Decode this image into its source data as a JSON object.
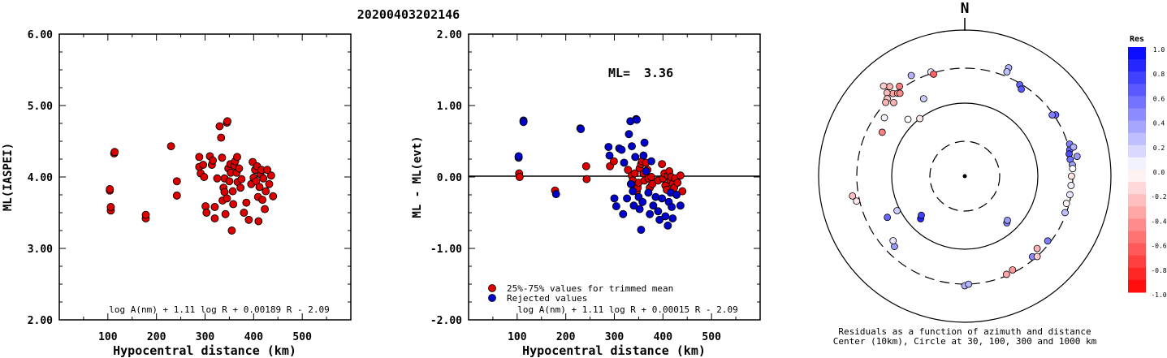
{
  "title": "20200403202146",
  "chart_data": [
    {
      "type": "scatter",
      "ylabel": "ML(IASPEI)",
      "xlabel": "Hypocentral distance (km)",
      "xlim": [
        0,
        600
      ],
      "ylim": [
        2.0,
        6.0
      ],
      "x_ticks": [
        "100",
        "200",
        "300",
        "400",
        "500"
      ],
      "y_ticks": [
        "2.00",
        "3.00",
        "4.00",
        "5.00",
        "6.00"
      ],
      "formula": "log A(nm) + 1.11 log R + 0.00189 R - 2.09",
      "color": "#dd0000",
      "points": [
        [
          104,
          3.81
        ],
        [
          104,
          3.83
        ],
        [
          106,
          3.53
        ],
        [
          106,
          3.58
        ],
        [
          113,
          4.33
        ],
        [
          114,
          4.35
        ],
        [
          178,
          3.42
        ],
        [
          178,
          3.47
        ],
        [
          230,
          4.43
        ],
        [
          242,
          3.94
        ],
        [
          242,
          3.74
        ],
        [
          288,
          4.14
        ],
        [
          288,
          4.28
        ],
        [
          291,
          4.05
        ],
        [
          296,
          4.17
        ],
        [
          298,
          4.0
        ],
        [
          301,
          3.59
        ],
        [
          303,
          3.5
        ],
        [
          310,
          4.29
        ],
        [
          314,
          4.17
        ],
        [
          316,
          4.23
        ],
        [
          320,
          3.42
        ],
        [
          320,
          3.58
        ],
        [
          325,
          3.98
        ],
        [
          330,
          4.71
        ],
        [
          333,
          4.55
        ],
        [
          335,
          4.27
        ],
        [
          336,
          3.67
        ],
        [
          338,
          3.85
        ],
        [
          340,
          3.79
        ],
        [
          340,
          3.98
        ],
        [
          342,
          3.48
        ],
        [
          345,
          3.7
        ],
        [
          345,
          4.76
        ],
        [
          346,
          4.78
        ],
        [
          348,
          4.12
        ],
        [
          350,
          3.94
        ],
        [
          352,
          4.18
        ],
        [
          353,
          4.06
        ],
        [
          355,
          3.25
        ],
        [
          357,
          3.8
        ],
        [
          358,
          3.62
        ],
        [
          360,
          4.16
        ],
        [
          362,
          4.22
        ],
        [
          365,
          4.06
        ],
        [
          366,
          4.28
        ],
        [
          367,
          3.93
        ],
        [
          370,
          4.12
        ],
        [
          373,
          3.85
        ],
        [
          375,
          3.97
        ],
        [
          380,
          3.5
        ],
        [
          385,
          3.64
        ],
        [
          390,
          3.4
        ],
        [
          395,
          3.9
        ],
        [
          398,
          4.21
        ],
        [
          400,
          3.99
        ],
        [
          403,
          4.1
        ],
        [
          405,
          3.94
        ],
        [
          407,
          4.15
        ],
        [
          409,
          3.72
        ],
        [
          410,
          3.38
        ],
        [
          412,
          3.86
        ],
        [
          414,
          4.04
        ],
        [
          416,
          4.1
        ],
        [
          418,
          3.68
        ],
        [
          420,
          3.98
        ],
        [
          423,
          3.55
        ],
        [
          425,
          3.8
        ],
        [
          428,
          4.1
        ],
        [
          432,
          3.9
        ],
        [
          436,
          4.02
        ],
        [
          440,
          3.73
        ]
      ]
    },
    {
      "type": "scatter",
      "ylabel": "ML - ML(evt)",
      "xlabel": "Hypocentral distance (km)",
      "xlim": [
        0,
        600
      ],
      "ylim": [
        -2.0,
        2.0
      ],
      "x_ticks": [
        "100",
        "200",
        "300",
        "400",
        "500"
      ],
      "y_ticks": [
        "-2.00",
        "-1.00",
        "0.00",
        "1.00",
        "2.00"
      ],
      "ml_label": "ML=",
      "ml_value": "3.36",
      "formula": "log A(nm) + 1.11 log R + 0.00015 R - 2.09",
      "legend": [
        {
          "label": "25%-75% values for trimmed mean",
          "color": "#dd0000"
        },
        {
          "label": "Rejected values",
          "color": "#0000cc"
        }
      ],
      "series": [
        {
          "color": "#dd0000",
          "points": [
            [
              104,
              0.05
            ],
            [
              105,
              0.0
            ],
            [
              178,
              -0.19
            ],
            [
              242,
              0.15
            ],
            [
              243,
              -0.03
            ],
            [
              291,
              0.15
            ],
            [
              299,
              0.22
            ],
            [
              328,
              0.1
            ],
            [
              336,
              0.02
            ],
            [
              338,
              -0.05
            ],
            [
              340,
              -0.12
            ],
            [
              342,
              0.05
            ],
            [
              346,
              -0.2
            ],
            [
              348,
              -0.15
            ],
            [
              350,
              -0.08
            ],
            [
              352,
              0.12
            ],
            [
              355,
              0.18
            ],
            [
              357,
              0.22
            ],
            [
              360,
              0.05
            ],
            [
              362,
              -0.05
            ],
            [
              365,
              0.2
            ],
            [
              368,
              0.1
            ],
            [
              370,
              -0.02
            ],
            [
              373,
              -0.15
            ],
            [
              376,
              0.0
            ],
            [
              378,
              -0.1
            ],
            [
              390,
              -0.05
            ],
            [
              398,
              0.18
            ],
            [
              400,
              -0.02
            ],
            [
              403,
              0.05
            ],
            [
              405,
              -0.12
            ],
            [
              408,
              -0.18
            ],
            [
              410,
              0.02
            ],
            [
              413,
              0.08
            ],
            [
              415,
              -0.05
            ],
            [
              417,
              0.0
            ],
            [
              420,
              -0.1
            ],
            [
              423,
              -0.15
            ],
            [
              425,
              -0.02
            ],
            [
              430,
              -0.08
            ],
            [
              436,
              0.02
            ],
            [
              440,
              -0.2
            ]
          ]
        },
        {
          "color": "#0000cc",
          "points": [
            [
              103,
              0.27
            ],
            [
              103,
              0.29
            ],
            [
              113,
              0.79
            ],
            [
              113,
              0.77
            ],
            [
              180,
              -0.24
            ],
            [
              230,
              0.68
            ],
            [
              231,
              0.67
            ],
            [
              288,
              0.42
            ],
            [
              290,
              0.3
            ],
            [
              300,
              -0.3
            ],
            [
              304,
              -0.41
            ],
            [
              310,
              0.4
            ],
            [
              315,
              0.38
            ],
            [
              318,
              -0.52
            ],
            [
              320,
              0.2
            ],
            [
              326,
              -0.3
            ],
            [
              330,
              0.6
            ],
            [
              333,
              0.78
            ],
            [
              334,
              -0.1
            ],
            [
              336,
              0.43
            ],
            [
              338,
              -0.2
            ],
            [
              340,
              -0.4
            ],
            [
              343,
              0.28
            ],
            [
              345,
              0.81
            ],
            [
              346,
              0.8
            ],
            [
              350,
              -0.28
            ],
            [
              352,
              -0.45
            ],
            [
              355,
              -0.74
            ],
            [
              358,
              -0.35
            ],
            [
              360,
              0.3
            ],
            [
              362,
              0.48
            ],
            [
              365,
              0.08
            ],
            [
              370,
              -0.22
            ],
            [
              373,
              -0.52
            ],
            [
              376,
              0.22
            ],
            [
              380,
              -0.4
            ],
            [
              385,
              -0.28
            ],
            [
              390,
              -0.48
            ],
            [
              393,
              -0.6
            ],
            [
              398,
              -0.3
            ],
            [
              405,
              -0.55
            ],
            [
              410,
              -0.68
            ],
            [
              412,
              -0.35
            ],
            [
              416,
              -0.22
            ],
            [
              418,
              -0.42
            ],
            [
              420,
              -0.58
            ],
            [
              428,
              -0.25
            ],
            [
              436,
              -0.4
            ]
          ]
        }
      ]
    },
    {
      "type": "scatter",
      "subtype": "polar",
      "north_label": "N",
      "caption_line1": "Residuals as a function of azimuth and distance",
      "caption_line2": "Center (10km), Circle at 30, 100, 300 and 1000 km",
      "colorbar": {
        "title": "Res",
        "range": [
          -1.0,
          1.0
        ],
        "ticks": [
          "1.0",
          "0.8",
          "0.6",
          "0.4",
          "0.2",
          "0.0",
          "-0.2",
          "-0.4",
          "-0.6",
          "-0.8",
          "-1.0"
        ]
      },
      "points_note": "azimuth in degrees from north, normalized radius, residual",
      "points": [
        [
          319,
          0.75,
          -0.35
        ],
        [
          317,
          0.78,
          -0.28
        ],
        [
          320,
          0.8,
          -0.3
        ],
        [
          315,
          0.75,
          -0.25
        ],
        [
          321,
          0.73,
          -0.4
        ],
        [
          318,
          0.83,
          -0.2
        ],
        [
          322,
          0.72,
          -0.45
        ],
        [
          316,
          0.7,
          -0.3
        ],
        [
          313,
          0.74,
          -0.3
        ],
        [
          324,
          0.76,
          -0.5
        ],
        [
          332,
          0.78,
          0.3
        ],
        [
          306,
          0.68,
          0.05
        ],
        [
          298,
          0.64,
          -0.5
        ],
        [
          315,
          0.55,
          0.0
        ],
        [
          322,
          0.5,
          -0.1
        ],
        [
          332,
          0.6,
          0.2
        ],
        [
          342,
          0.75,
          0.1
        ],
        [
          343,
          0.73,
          -0.6
        ],
        [
          22,
          0.8,
          0.3
        ],
        [
          22,
          0.77,
          0.25
        ],
        [
          31,
          0.73,
          0.6
        ],
        [
          33,
          0.71,
          0.65
        ],
        [
          56,
          0.75,
          0.6
        ],
        [
          55,
          0.73,
          0.5
        ],
        [
          73,
          0.75,
          0.5
        ],
        [
          76,
          0.74,
          0.6
        ],
        [
          78,
          0.73,
          0.7
        ],
        [
          81,
          0.73,
          0.55
        ],
        [
          84,
          0.74,
          0.35
        ],
        [
          80,
          0.78,
          0.4
        ],
        [
          75,
          0.77,
          0.3
        ],
        [
          86,
          0.74,
          0.0
        ],
        [
          90,
          0.73,
          -0.1
        ],
        [
          95,
          0.73,
          0.05
        ],
        [
          100,
          0.73,
          0.1
        ],
        [
          105,
          0.72,
          -0.05
        ],
        [
          110,
          0.73,
          0.25
        ],
        [
          128,
          0.72,
          0.5
        ],
        [
          140,
          0.72,
          0.45
        ],
        [
          138,
          0.74,
          -0.2
        ],
        [
          135,
          0.7,
          -0.3
        ],
        [
          153,
          0.72,
          -0.4
        ],
        [
          157,
          0.73,
          -0.35
        ],
        [
          180,
          0.75,
          0.3
        ],
        [
          178,
          0.74,
          0.3
        ],
        [
          225,
          0.68,
          0.4
        ],
        [
          228,
          0.66,
          0.1
        ],
        [
          242,
          0.6,
          0.6
        ],
        [
          243,
          0.52,
          0.2
        ],
        [
          257,
          0.76,
          -0.1
        ],
        [
          260,
          0.78,
          -0.25
        ],
        [
          226,
          0.42,
          0.85
        ],
        [
          228,
          0.4,
          0.75
        ],
        [
          138,
          0.43,
          0.5
        ],
        [
          136,
          0.42,
          0.4
        ]
      ]
    }
  ]
}
